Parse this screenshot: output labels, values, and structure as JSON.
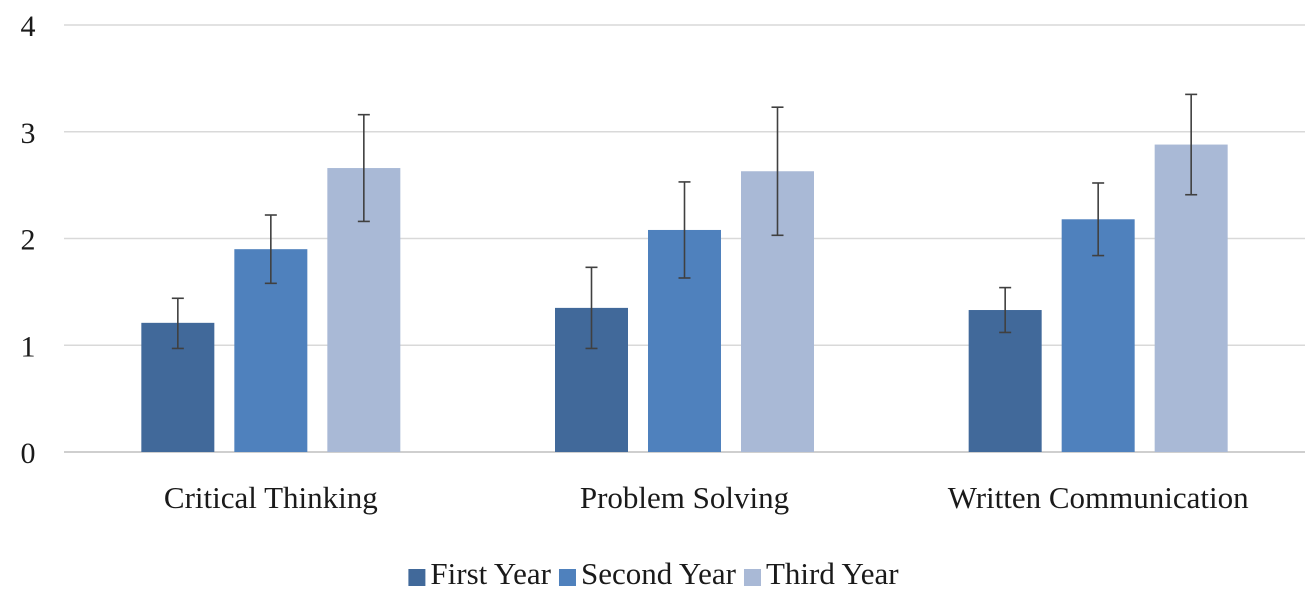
{
  "chart_data": {
    "type": "bar",
    "title": "",
    "xlabel": "",
    "ylabel": "",
    "ylim": [
      0,
      4
    ],
    "yticks": [
      0,
      1,
      2,
      3,
      4
    ],
    "grid": true,
    "legend_position": "bottom",
    "categories": [
      "Critical Thinking",
      "Problem Solving",
      "Written Communication"
    ],
    "series": [
      {
        "name": "First Year",
        "color": "#41699a",
        "values": [
          1.21,
          1.35,
          1.33
        ],
        "error_low": [
          0.97,
          0.97,
          1.12
        ],
        "error_high": [
          1.44,
          1.73,
          1.54
        ]
      },
      {
        "name": "Second Year",
        "color": "#4f81bd",
        "values": [
          1.9,
          2.08,
          2.18
        ],
        "error_low": [
          1.58,
          1.63,
          1.84
        ],
        "error_high": [
          2.22,
          2.53,
          2.52
        ]
      },
      {
        "name": "Third Year",
        "color": "#a9b9d6",
        "values": [
          2.66,
          2.63,
          2.88
        ],
        "error_low": [
          2.16,
          2.03,
          2.41
        ],
        "error_high": [
          3.16,
          3.23,
          3.35
        ]
      }
    ]
  }
}
